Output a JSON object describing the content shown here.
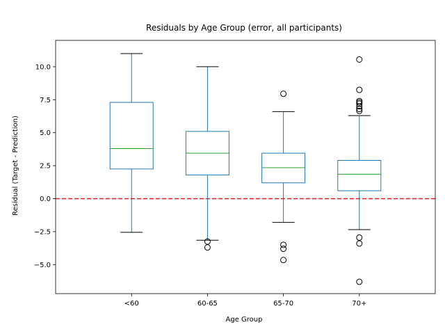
{
  "chart_data": {
    "type": "box",
    "title": "Residuals by Age Group (error, all participants)",
    "xlabel": "Age Group",
    "ylabel": "Residual (Target - Prediction)",
    "ylim": [
      -7.2,
      12.0
    ],
    "yticks": [
      -5.0,
      -2.5,
      0.0,
      2.5,
      5.0,
      7.5,
      10.0
    ],
    "ytick_labels": [
      "−5.0",
      "−2.5",
      "0.0",
      "2.5",
      "5.0",
      "7.5",
      "10.0"
    ],
    "reference_line": {
      "y": 0.0,
      "color": "#e41a1c",
      "style": "dashed"
    },
    "colors": {
      "box": "#1f77b4",
      "median": "#2ca02c",
      "whisker": "#1f77b4",
      "cap": "#000000",
      "flier": "#000000"
    },
    "categories": [
      "<60",
      "60-65",
      "65-70",
      "70+"
    ],
    "boxes": [
      {
        "label": "<60",
        "whisker_low": -2.55,
        "q1": 2.25,
        "median": 3.8,
        "q3": 7.3,
        "whisker_high": 11.0,
        "outliers": []
      },
      {
        "label": "60-65",
        "whisker_low": -3.15,
        "q1": 1.8,
        "median": 3.45,
        "q3": 5.1,
        "whisker_high": 10.0,
        "outliers": [
          -3.25,
          -3.7
        ]
      },
      {
        "label": "65-70",
        "whisker_low": -1.8,
        "q1": 1.2,
        "median": 2.35,
        "q3": 3.45,
        "whisker_high": 6.6,
        "outliers": [
          7.95,
          -3.5,
          -3.8,
          -4.65
        ]
      },
      {
        "label": "70+",
        "whisker_low": -2.35,
        "q1": 0.6,
        "median": 1.85,
        "q3": 2.9,
        "whisker_high": 6.3,
        "outliers": [
          10.55,
          8.25,
          7.4,
          7.3,
          7.2,
          7.0,
          6.8,
          6.65,
          -2.95,
          -3.4,
          -6.3
        ]
      }
    ]
  }
}
